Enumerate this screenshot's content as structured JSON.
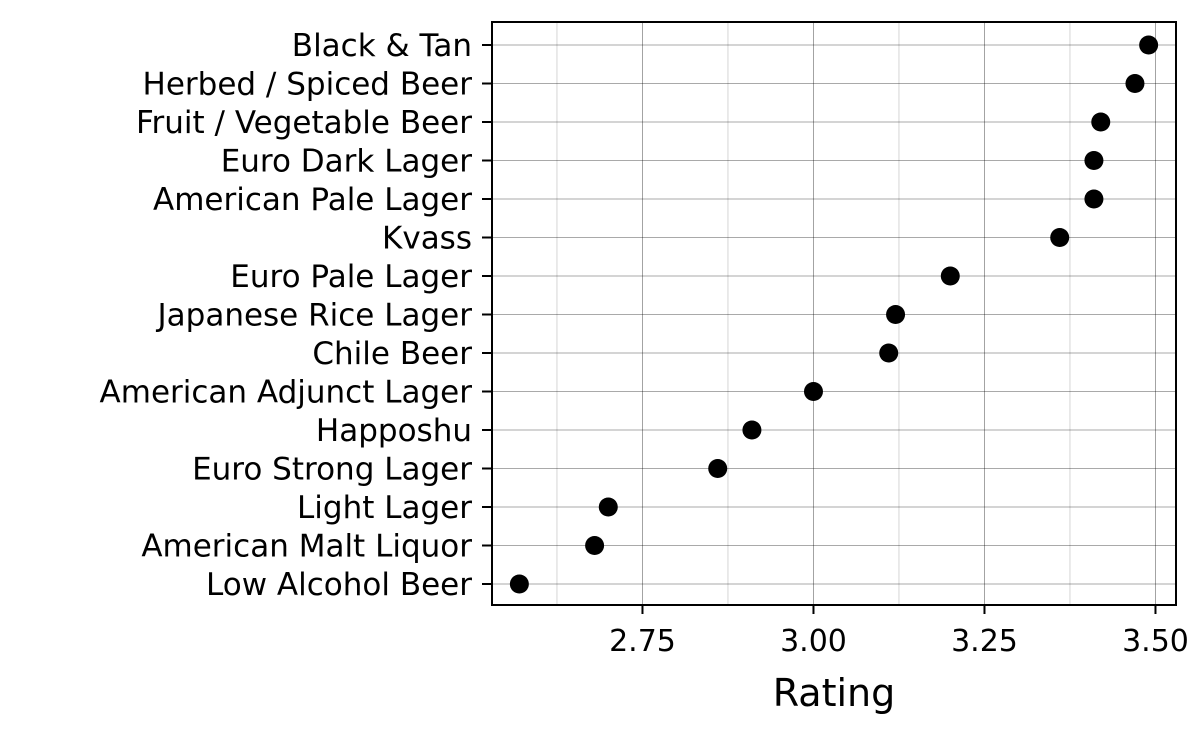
{
  "chart_data": {
    "type": "scatter",
    "style": "dot-plot",
    "xlabel": "Rating",
    "ylabel": "",
    "xlim": [
      2.53,
      3.53
    ],
    "xticks": [
      2.75,
      3.0,
      3.25,
      3.5
    ],
    "xtick_labels": [
      "2.75",
      "3.00",
      "3.25",
      "3.50"
    ],
    "grid": true,
    "point_color": "#000000",
    "categories": [
      "Black & Tan",
      "Herbed / Spiced Beer",
      "Fruit / Vegetable Beer",
      "Euro Dark Lager",
      "American Pale Lager",
      "Kvass",
      "Euro Pale Lager",
      "Japanese Rice Lager",
      "Chile Beer",
      "American Adjunct Lager",
      "Happoshu",
      "Euro Strong Lager",
      "Light Lager",
      "American Malt Liquor",
      "Low Alcohol Beer"
    ],
    "values": [
      3.49,
      3.47,
      3.42,
      3.41,
      3.41,
      3.36,
      3.2,
      3.12,
      3.11,
      3.0,
      2.91,
      2.86,
      2.7,
      2.68,
      2.57
    ]
  }
}
